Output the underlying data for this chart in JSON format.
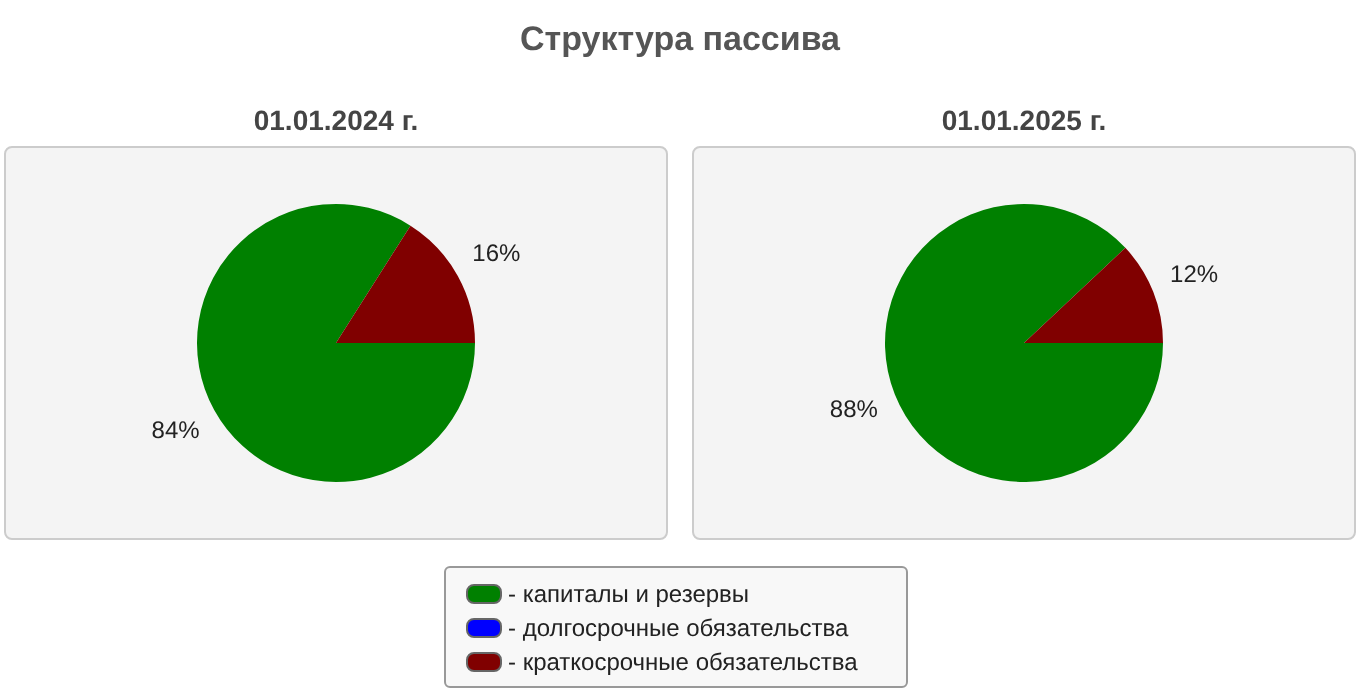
{
  "chart_data": [
    {
      "type": "other",
      "title": "Структура пассива"
    },
    {
      "type": "pie",
      "title": "01.01.2024 г.",
      "categories": [
        "- капиталы и резервы",
        "- долгосрочные обязательства",
        "- краткосрочные обязательства"
      ],
      "values": [
        84,
        0,
        16
      ],
      "colors": [
        "#008000",
        "#0000ff",
        "#800000"
      ],
      "value_labels": [
        "84%",
        null,
        "16%"
      ],
      "legend": "bottom"
    },
    {
      "type": "pie",
      "title": "01.01.2025 г.",
      "categories": [
        null,
        null,
        null
      ],
      "values": [
        88,
        0,
        12
      ],
      "colors": [
        "#008000",
        "#0000ff",
        "#800000"
      ],
      "value_labels": [
        "88%",
        null,
        "12%"
      ]
    }
  ]
}
